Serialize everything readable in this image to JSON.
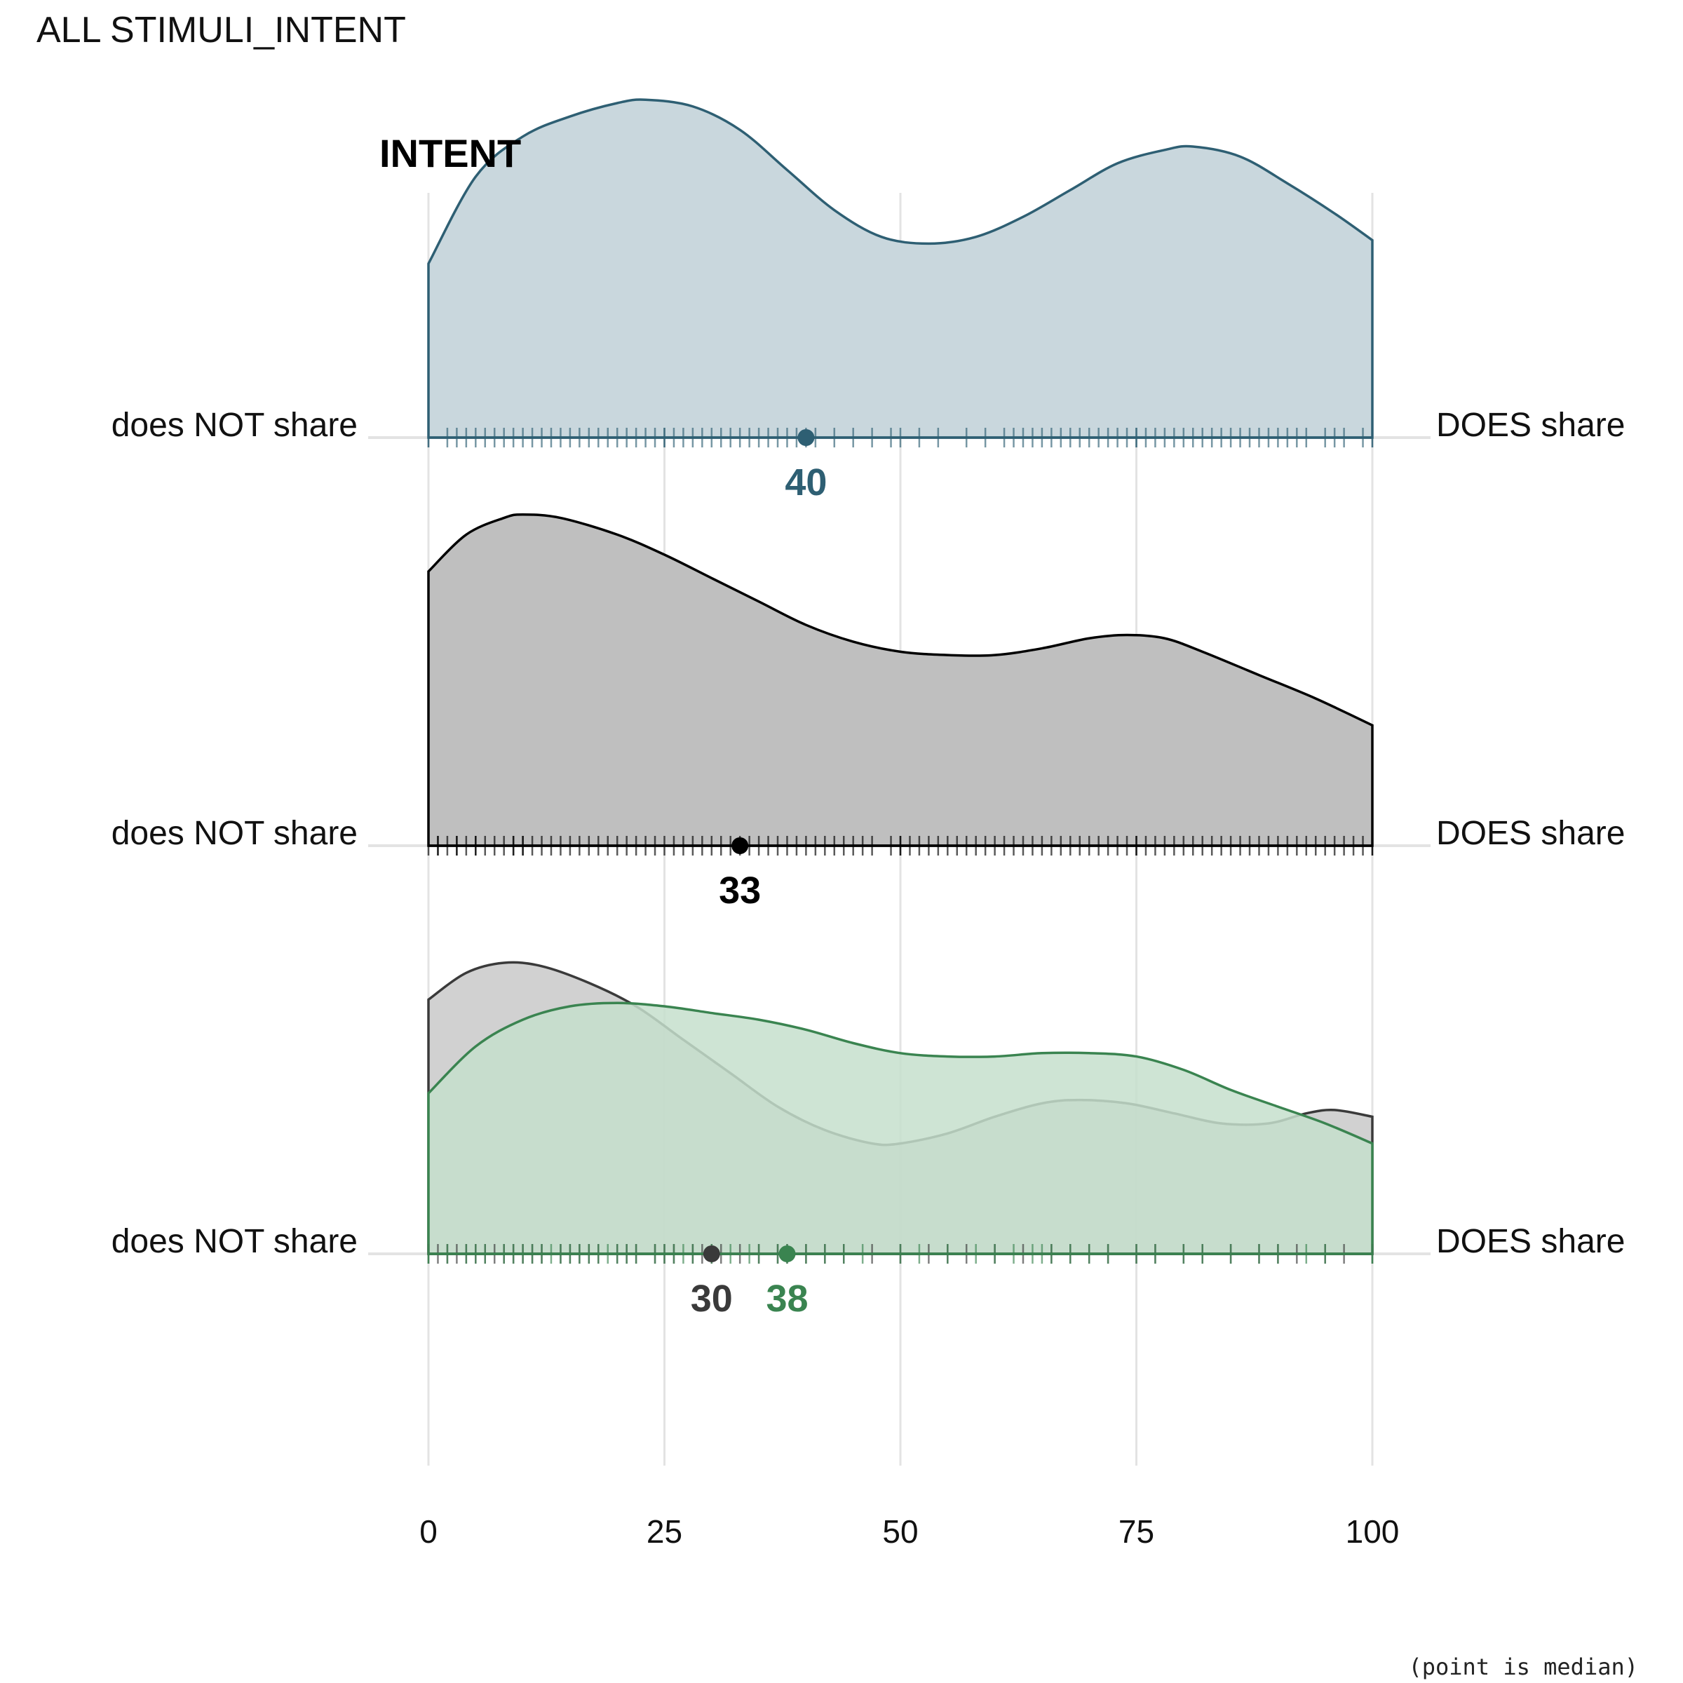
{
  "page_title": "ALL STIMULI_INTENT",
  "panel_title": "INTENT",
  "caption": "(point is median)",
  "chart_data": {
    "type": "area",
    "xlim": [
      0,
      100
    ],
    "x_ticks": [
      0,
      25,
      50,
      75,
      100
    ],
    "x_tick_labels": [
      "0",
      "25",
      "50",
      "75",
      "100"
    ],
    "grid": "vertical",
    "left_label": "does NOT share",
    "right_label": "DOES share",
    "rows": [
      {
        "groups": [
          {
            "color": "#2e5f73",
            "fill": "#c9d7dd",
            "fill_opacity": 1,
            "median": 40,
            "median_label": "40",
            "density": [
              [
                0,
                0.52
              ],
              [
                5,
                0.78
              ],
              [
                10,
                0.9
              ],
              [
                15,
                0.96
              ],
              [
                20,
                1.0
              ],
              [
                23,
                1.01
              ],
              [
                28,
                0.99
              ],
              [
                33,
                0.92
              ],
              [
                38,
                0.8
              ],
              [
                43,
                0.68
              ],
              [
                48,
                0.6
              ],
              [
                53,
                0.58
              ],
              [
                58,
                0.6
              ],
              [
                63,
                0.66
              ],
              [
                68,
                0.74
              ],
              [
                73,
                0.82
              ],
              [
                78,
                0.86
              ],
              [
                81,
                0.87
              ],
              [
                86,
                0.84
              ],
              [
                91,
                0.76
              ],
              [
                96,
                0.67
              ],
              [
                100,
                0.59
              ]
            ],
            "rug": [
              0,
              0,
              2,
              3,
              4,
              5,
              6,
              7,
              8,
              9,
              10,
              11,
              12,
              13,
              14,
              15,
              16,
              17,
              18,
              19,
              20,
              21,
              22,
              23,
              24,
              25,
              25,
              26,
              27,
              28,
              29,
              30,
              31,
              32,
              33,
              34,
              35,
              36,
              37,
              38,
              39,
              40,
              41,
              43,
              45,
              47,
              49,
              50,
              52,
              54,
              57,
              59,
              61,
              62,
              63,
              64,
              65,
              66,
              67,
              68,
              69,
              70,
              71,
              72,
              73,
              74,
              75,
              75,
              76,
              77,
              78,
              79,
              80,
              81,
              82,
              83,
              84,
              85,
              86,
              87,
              88,
              89,
              90,
              91,
              92,
              93,
              95,
              96,
              97,
              99,
              100,
              100
            ]
          }
        ]
      },
      {
        "groups": [
          {
            "color": "#000000",
            "fill": "#bfbfbf",
            "fill_opacity": 1,
            "median": 33,
            "median_label": "33",
            "density": [
              [
                0,
                0.82
              ],
              [
                4,
                0.93
              ],
              [
                8,
                0.98
              ],
              [
                10,
                0.99
              ],
              [
                14,
                0.98
              ],
              [
                20,
                0.93
              ],
              [
                25,
                0.87
              ],
              [
                30,
                0.8
              ],
              [
                35,
                0.73
              ],
              [
                40,
                0.66
              ],
              [
                45,
                0.61
              ],
              [
                50,
                0.58
              ],
              [
                55,
                0.57
              ],
              [
                60,
                0.57
              ],
              [
                65,
                0.59
              ],
              [
                70,
                0.62
              ],
              [
                74,
                0.63
              ],
              [
                78,
                0.62
              ],
              [
                82,
                0.58
              ],
              [
                88,
                0.51
              ],
              [
                94,
                0.44
              ],
              [
                100,
                0.36
              ]
            ],
            "rug": [
              0,
              1,
              1,
              2,
              3,
              3,
              4,
              5,
              5,
              6,
              7,
              8,
              9,
              9,
              10,
              10,
              11,
              12,
              13,
              14,
              15,
              16,
              17,
              18,
              19,
              20,
              21,
              22,
              23,
              24,
              25,
              26,
              27,
              28,
              29,
              30,
              31,
              32,
              33,
              34,
              35,
              36,
              37,
              38,
              39,
              40,
              41,
              42,
              43,
              44,
              45,
              46,
              47,
              49,
              50,
              50,
              51,
              52,
              53,
              54,
              55,
              56,
              57,
              58,
              59,
              60,
              61,
              62,
              63,
              64,
              65,
              66,
              67,
              68,
              69,
              70,
              71,
              72,
              73,
              74,
              75,
              75,
              76,
              77,
              78,
              79,
              80,
              81,
              82,
              83,
              84,
              85,
              86,
              87,
              88,
              89,
              90,
              91,
              92,
              93,
              94,
              95,
              96,
              97,
              98,
              99,
              100,
              100
            ]
          }
        ]
      },
      {
        "groups": [
          {
            "color": "#3a3a3a",
            "fill": "#b4b4b4",
            "fill_opacity": 0.62,
            "median": 30,
            "median_label": "30",
            "density": [
              [
                0,
                0.76
              ],
              [
                4,
                0.84
              ],
              [
                8,
                0.87
              ],
              [
                12,
                0.86
              ],
              [
                17,
                0.81
              ],
              [
                22,
                0.74
              ],
              [
                27,
                0.64
              ],
              [
                32,
                0.54
              ],
              [
                37,
                0.44
              ],
              [
                42,
                0.37
              ],
              [
                47,
                0.33
              ],
              [
                50,
                0.33
              ],
              [
                55,
                0.36
              ],
              [
                60,
                0.41
              ],
              [
                65,
                0.45
              ],
              [
                69,
                0.46
              ],
              [
                74,
                0.45
              ],
              [
                79,
                0.42
              ],
              [
                84,
                0.39
              ],
              [
                89,
                0.39
              ],
              [
                93,
                0.42
              ],
              [
                96,
                0.43
              ],
              [
                100,
                0.41
              ]
            ],
            "rug": [
              0,
              1,
              2,
              3,
              4,
              5,
              6,
              7,
              8,
              9,
              10,
              11,
              12,
              14,
              15,
              16,
              17,
              18,
              20,
              21,
              22,
              24,
              25,
              26,
              28,
              29,
              30,
              31,
              33,
              35,
              37,
              38,
              40,
              42,
              44,
              47,
              50,
              53,
              55,
              57,
              60,
              63,
              66,
              68,
              70,
              72,
              75,
              77,
              80,
              82,
              85,
              88,
              90,
              92,
              95,
              97,
              100
            ]
          },
          {
            "color": "#3a8450",
            "fill": "#c6dfcc",
            "fill_opacity": 0.85,
            "median": 38,
            "median_label": "38",
            "density": [
              [
                0,
                0.48
              ],
              [
                5,
                0.62
              ],
              [
                10,
                0.7
              ],
              [
                15,
                0.74
              ],
              [
                20,
                0.75
              ],
              [
                25,
                0.74
              ],
              [
                30,
                0.72
              ],
              [
                35,
                0.7
              ],
              [
                40,
                0.67
              ],
              [
                45,
                0.63
              ],
              [
                50,
                0.6
              ],
              [
                55,
                0.59
              ],
              [
                60,
                0.59
              ],
              [
                65,
                0.6
              ],
              [
                70,
                0.6
              ],
              [
                75,
                0.59
              ],
              [
                80,
                0.55
              ],
              [
                85,
                0.49
              ],
              [
                90,
                0.44
              ],
              [
                95,
                0.39
              ],
              [
                100,
                0.33
              ]
            ],
            "rug": [
              0,
              0,
              2,
              4,
              5,
              6,
              8,
              9,
              10,
              11,
              12,
              13,
              14,
              15,
              16,
              17,
              18,
              19,
              20,
              21,
              22,
              24,
              25,
              26,
              27,
              28,
              30,
              32,
              34,
              35,
              37,
              38,
              40,
              42,
              44,
              46,
              50,
              52,
              55,
              58,
              60,
              62,
              64,
              65,
              66,
              68,
              70,
              72,
              75,
              77,
              80,
              82,
              85,
              88,
              90,
              93,
              95,
              100,
              100
            ]
          }
        ]
      }
    ]
  }
}
